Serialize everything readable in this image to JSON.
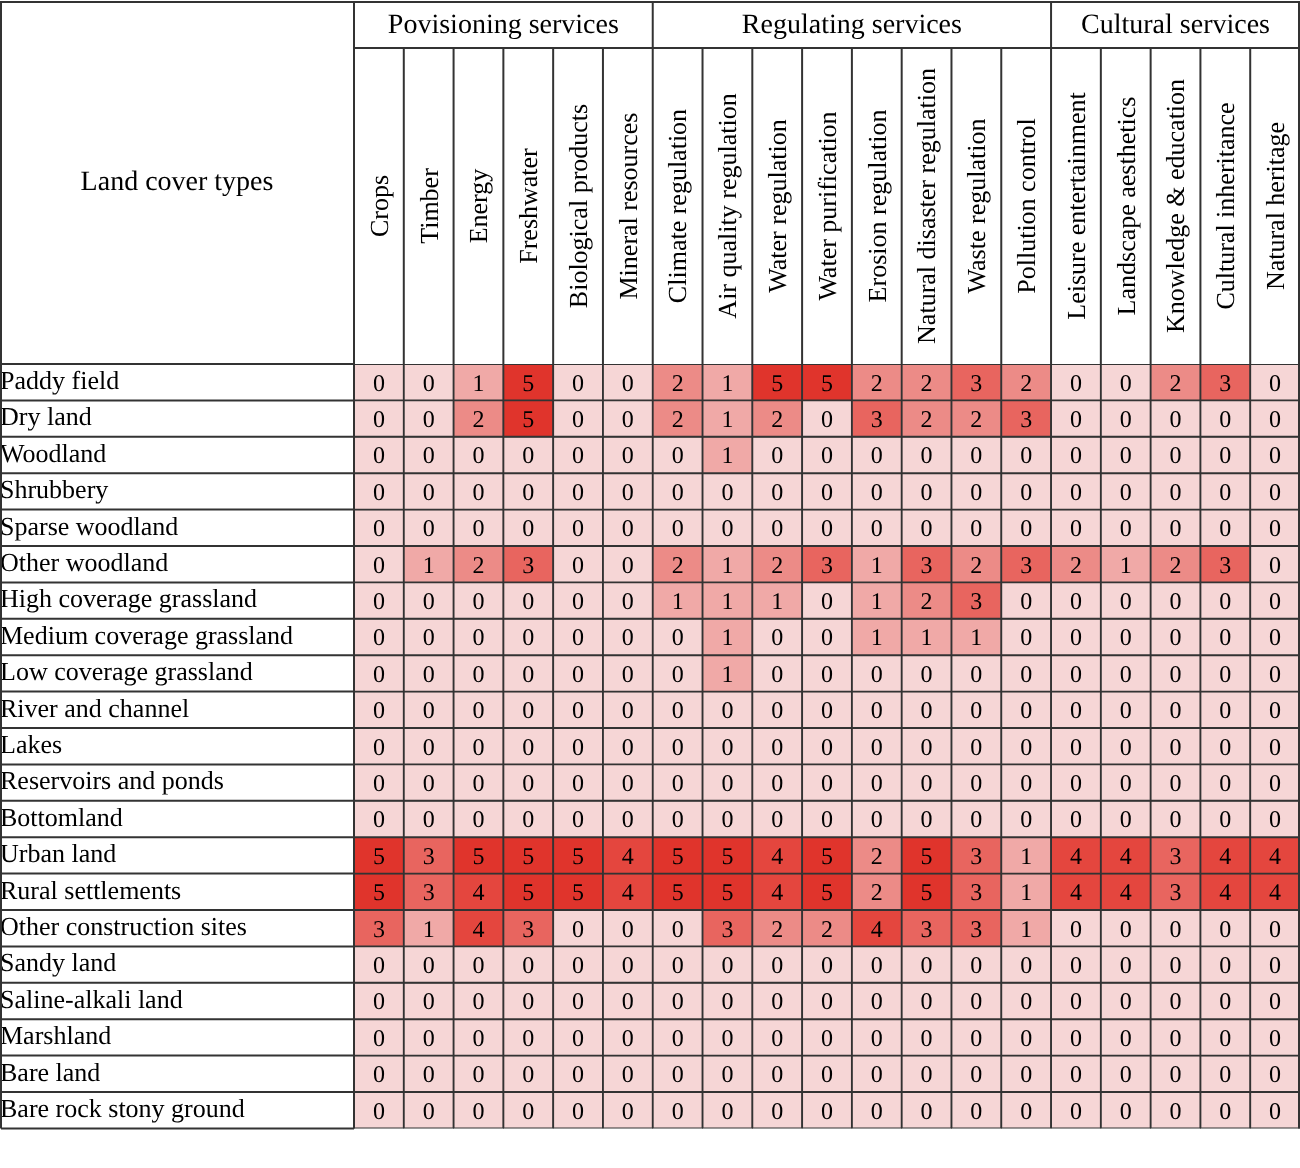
{
  "chart_data": {
    "type": "heatmap",
    "ylabel": "Land cover types",
    "categories": [
      "Crops",
      "Timber",
      "Energy",
      "Freshwater",
      "Biological products",
      "Mineral resources",
      "Climate regulation",
      "Air quality regulation",
      "Water regulation",
      "Water purification",
      "Erosion regulation",
      "Natural disaster regulation",
      "Waste regulation",
      "Pollution control",
      "Leisure entertainment",
      "Landscape aesthetics",
      "Knowledge & education",
      "Cultural inheritance",
      "Natural heritage"
    ],
    "y_categories": [
      "Paddy field",
      "Dry land",
      "Woodland",
      "Shrubbery",
      "Sparse woodland",
      "Other woodland",
      "High coverage grassland",
      "Medium coverage grassland",
      "Low coverage grassland",
      "River and channel",
      "Lakes",
      "Reservoirs and ponds",
      "Bottomland",
      "Urban land",
      "Rural settlements",
      "Other construction sites",
      "Sandy land",
      "Saline-alkali land",
      "Marshland",
      "Bare land",
      "Bare rock stony ground"
    ],
    "cells": [
      [
        0,
        0,
        1,
        5,
        0,
        0,
        2,
        1,
        5,
        5,
        2,
        2,
        3,
        2,
        0,
        0,
        2,
        3,
        0
      ],
      [
        0,
        0,
        2,
        5,
        0,
        0,
        2,
        1,
        2,
        0,
        3,
        2,
        2,
        3,
        0,
        0,
        0,
        0,
        0
      ],
      [
        0,
        0,
        0,
        0,
        0,
        0,
        0,
        1,
        0,
        0,
        0,
        0,
        0,
        0,
        0,
        0,
        0,
        0,
        0
      ],
      [
        0,
        0,
        0,
        0,
        0,
        0,
        0,
        0,
        0,
        0,
        0,
        0,
        0,
        0,
        0,
        0,
        0,
        0,
        0
      ],
      [
        0,
        0,
        0,
        0,
        0,
        0,
        0,
        0,
        0,
        0,
        0,
        0,
        0,
        0,
        0,
        0,
        0,
        0,
        0
      ],
      [
        0,
        1,
        2,
        3,
        0,
        0,
        2,
        1,
        2,
        3,
        1,
        3,
        2,
        3,
        2,
        1,
        2,
        3,
        0
      ],
      [
        0,
        0,
        0,
        0,
        0,
        0,
        1,
        1,
        1,
        0,
        1,
        2,
        3,
        0,
        0,
        0,
        0,
        0,
        0
      ],
      [
        0,
        0,
        0,
        0,
        0,
        0,
        0,
        1,
        0,
        0,
        1,
        1,
        1,
        0,
        0,
        0,
        0,
        0,
        0
      ],
      [
        0,
        0,
        0,
        0,
        0,
        0,
        0,
        1,
        0,
        0,
        0,
        0,
        0,
        0,
        0,
        0,
        0,
        0,
        0
      ],
      [
        0,
        0,
        0,
        0,
        0,
        0,
        0,
        0,
        0,
        0,
        0,
        0,
        0,
        0,
        0,
        0,
        0,
        0,
        0
      ],
      [
        0,
        0,
        0,
        0,
        0,
        0,
        0,
        0,
        0,
        0,
        0,
        0,
        0,
        0,
        0,
        0,
        0,
        0,
        0
      ],
      [
        0,
        0,
        0,
        0,
        0,
        0,
        0,
        0,
        0,
        0,
        0,
        0,
        0,
        0,
        0,
        0,
        0,
        0,
        0
      ],
      [
        0,
        0,
        0,
        0,
        0,
        0,
        0,
        0,
        0,
        0,
        0,
        0,
        0,
        0,
        0,
        0,
        0,
        0,
        0
      ],
      [
        5,
        3,
        5,
        5,
        5,
        4,
        5,
        5,
        4,
        5,
        2,
        5,
        3,
        1,
        4,
        4,
        3,
        4,
        4
      ],
      [
        5,
        3,
        4,
        5,
        5,
        4,
        5,
        5,
        4,
        5,
        2,
        5,
        3,
        1,
        4,
        4,
        3,
        4,
        4
      ],
      [
        3,
        1,
        4,
        3,
        0,
        0,
        0,
        3,
        2,
        2,
        4,
        3,
        3,
        1,
        0,
        0,
        0,
        0,
        0
      ],
      [
        0,
        0,
        0,
        0,
        0,
        0,
        0,
        0,
        0,
        0,
        0,
        0,
        0,
        0,
        0,
        0,
        0,
        0,
        0
      ],
      [
        0,
        0,
        0,
        0,
        0,
        0,
        0,
        0,
        0,
        0,
        0,
        0,
        0,
        0,
        0,
        0,
        0,
        0,
        0
      ],
      [
        0,
        0,
        0,
        0,
        0,
        0,
        0,
        0,
        0,
        0,
        0,
        0,
        0,
        0,
        0,
        0,
        0,
        0,
        0
      ],
      [
        0,
        0,
        0,
        0,
        0,
        0,
        0,
        0,
        0,
        0,
        0,
        0,
        0,
        0,
        0,
        0,
        0,
        0,
        0
      ],
      [
        0,
        0,
        0,
        0,
        0,
        0,
        0,
        0,
        0,
        0,
        0,
        0,
        0,
        0,
        0,
        0,
        0,
        0,
        0
      ]
    ],
    "colors": [
      "#f6d6d6",
      "#f0a9a7",
      "#ec8b87",
      "#e8655f",
      "#e4463e",
      "#e0342c"
    ],
    "data_labels": true,
    "annotations": [
      "Povisioning services",
      "Regulating services",
      "Cultural services"
    ]
  }
}
